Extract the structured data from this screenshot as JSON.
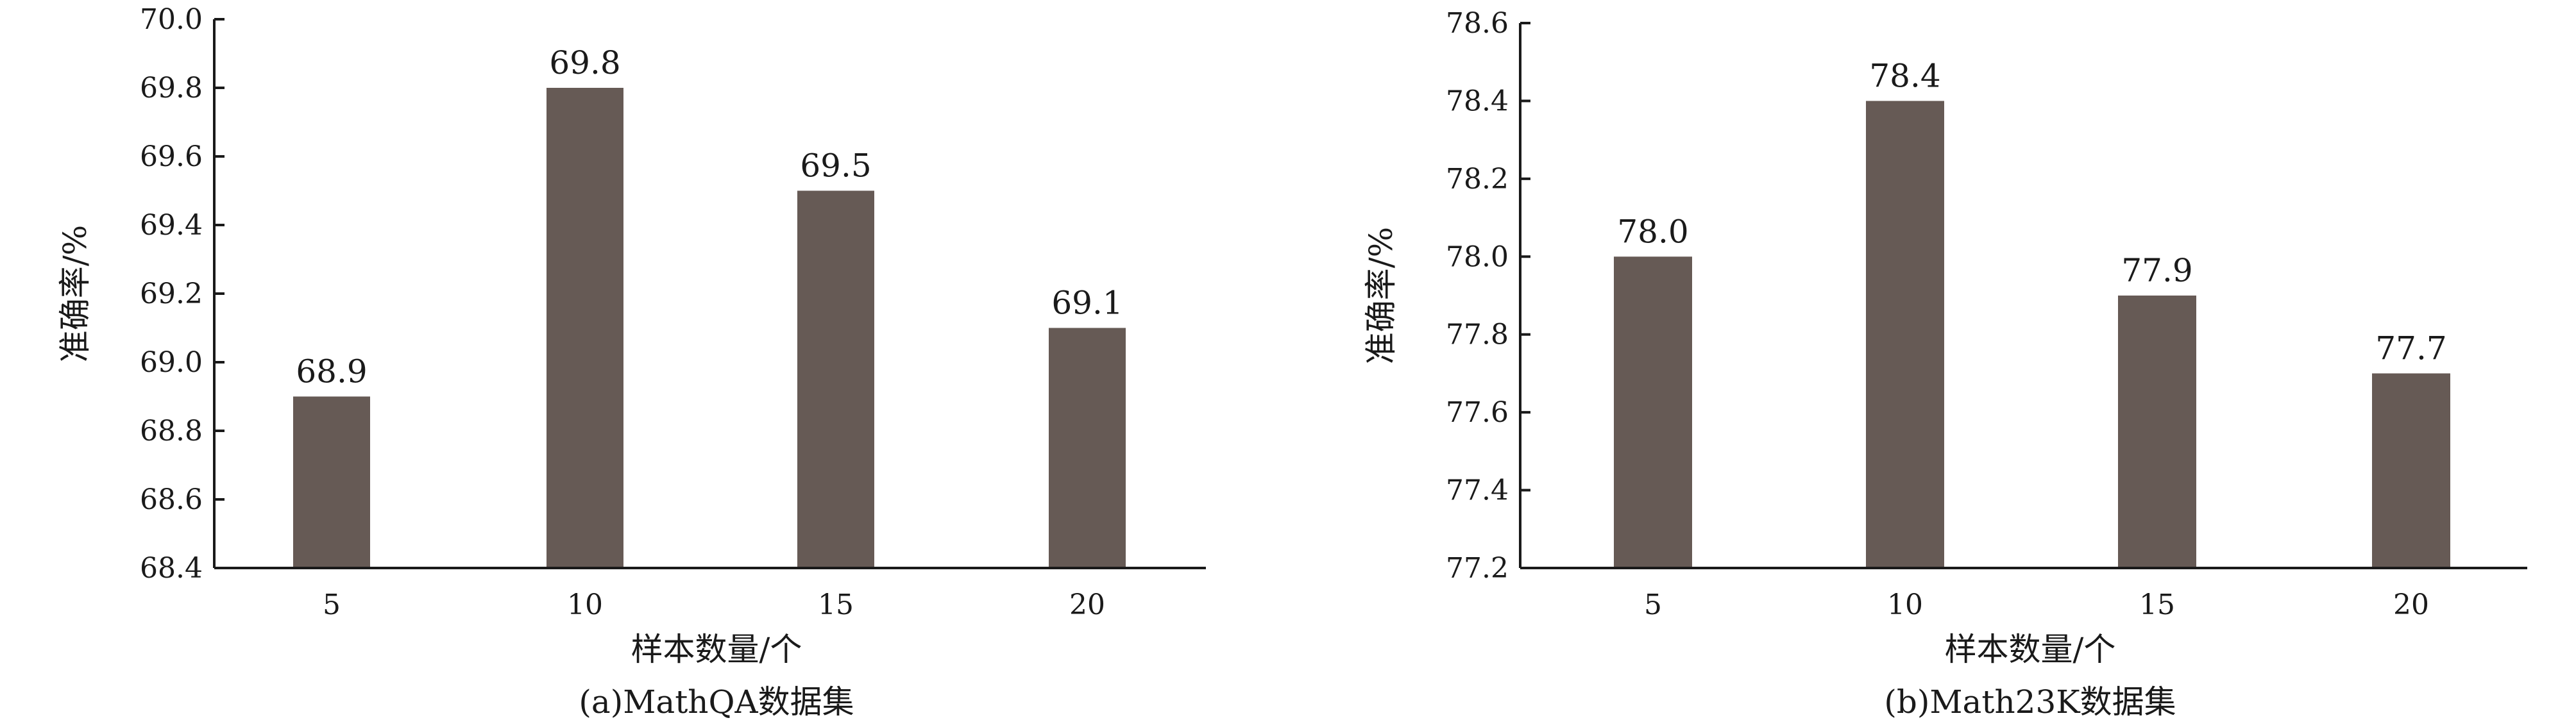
{
  "chart_data": [
    {
      "type": "bar",
      "categories": [
        "5",
        "10",
        "15",
        "20"
      ],
      "values": [
        68.9,
        69.8,
        69.5,
        69.1
      ],
      "data_labels": [
        "68.9",
        "69.8",
        "69.5",
        "69.1"
      ],
      "xlabel": "样本数量/个",
      "ylabel": "准确率/%",
      "caption": "(a)MathQA数据集",
      "ylim": [
        68.4,
        70.0
      ],
      "yticks": [
        "68.4",
        "68.6",
        "68.8",
        "69.0",
        "69.2",
        "69.4",
        "69.6",
        "69.8",
        "70.0"
      ],
      "bar_color": "#665a55",
      "grid": false
    },
    {
      "type": "bar",
      "categories": [
        "5",
        "10",
        "15",
        "20"
      ],
      "values": [
        78.0,
        78.4,
        77.9,
        77.7
      ],
      "data_labels": [
        "78.0",
        "78.4",
        "77.9",
        "77.7"
      ],
      "xlabel": "样本数量/个",
      "ylabel": "准确率/%",
      "caption": "(b)Math23K数据集",
      "ylim": [
        77.2,
        78.6
      ],
      "yticks": [
        "77.2",
        "77.4",
        "77.6",
        "77.8",
        "78.0",
        "78.2",
        "78.4",
        "78.6"
      ],
      "bar_color": "#665a55",
      "grid": false
    }
  ]
}
